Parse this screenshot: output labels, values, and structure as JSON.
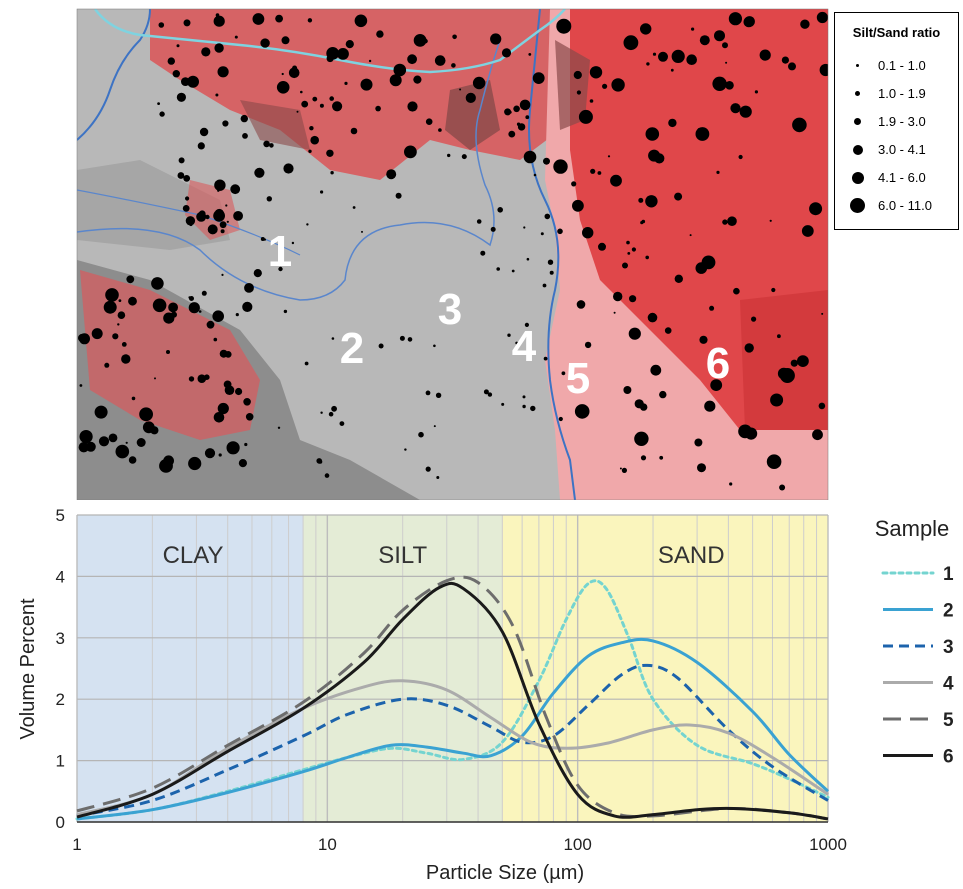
{
  "map": {
    "region_labels": [
      "1",
      "2",
      "3",
      "4",
      "5",
      "6"
    ],
    "legend": {
      "title": "Silt/Sand ratio",
      "classes": [
        "0.1 - 1.0",
        "1.0 - 1.9",
        "1.9 - 3.0",
        "3.0 - 4.1",
        "4.1 - 6.0",
        "6.0 - 11.0"
      ]
    },
    "colors": {
      "hillshade": "#b8b8b8",
      "sand_red": "#e0474a",
      "light_pink": "#f0a8aa",
      "river": "#3d73c4",
      "border": "#7fd3e0"
    }
  },
  "chart_data": {
    "type": "line",
    "xlabel": "Particle Size (µm)",
    "ylabel": "Volume Percent",
    "xscale": "log",
    "xlim": [
      1,
      1000
    ],
    "ylim": [
      0,
      5
    ],
    "xticks": [
      "1",
      "10",
      "100",
      "1000"
    ],
    "yticks": [
      "0",
      "1",
      "2",
      "3",
      "4",
      "5"
    ],
    "grid": true,
    "legend_title": "Sample",
    "legend_position": "right",
    "zones": [
      {
        "label": "CLAY",
        "from": 1,
        "to": 8,
        "color": "#d5e2f1"
      },
      {
        "label": "SILT",
        "from": 8,
        "to": 50,
        "color": "#e4ecd6"
      },
      {
        "label": "SAND",
        "from": 50,
        "to": 1000,
        "color": "#faf5bd"
      }
    ],
    "series": [
      {
        "name": "1",
        "color": "#74d4d0",
        "dash": "dotted",
        "points": [
          [
            1,
            0.05
          ],
          [
            2,
            0.2
          ],
          [
            4,
            0.5
          ],
          [
            8,
            0.85
          ],
          [
            12,
            1.05
          ],
          [
            18,
            1.2
          ],
          [
            25,
            1.12
          ],
          [
            35,
            1.02
          ],
          [
            50,
            1.3
          ],
          [
            70,
            2.3
          ],
          [
            90,
            3.3
          ],
          [
            110,
            3.88
          ],
          [
            130,
            3.8
          ],
          [
            160,
            3.0
          ],
          [
            200,
            2.0
          ],
          [
            300,
            1.25
          ],
          [
            500,
            0.95
          ],
          [
            700,
            0.7
          ],
          [
            1000,
            0.4
          ]
        ]
      },
      {
        "name": "2",
        "color": "#3aa2d2",
        "dash": "solid",
        "points": [
          [
            1,
            0.05
          ],
          [
            2,
            0.2
          ],
          [
            4,
            0.48
          ],
          [
            8,
            0.82
          ],
          [
            12,
            1.05
          ],
          [
            18,
            1.25
          ],
          [
            25,
            1.22
          ],
          [
            35,
            1.12
          ],
          [
            45,
            1.08
          ],
          [
            60,
            1.4
          ],
          [
            80,
            2.1
          ],
          [
            110,
            2.7
          ],
          [
            150,
            2.92
          ],
          [
            200,
            2.95
          ],
          [
            300,
            2.6
          ],
          [
            500,
            1.8
          ],
          [
            700,
            1.1
          ],
          [
            1000,
            0.5
          ]
        ]
      },
      {
        "name": "3",
        "color": "#1c63ac",
        "dash": "dashed",
        "points": [
          [
            1,
            0.1
          ],
          [
            2,
            0.35
          ],
          [
            4,
            0.85
          ],
          [
            8,
            1.4
          ],
          [
            12,
            1.75
          ],
          [
            20,
            2.0
          ],
          [
            30,
            1.9
          ],
          [
            45,
            1.55
          ],
          [
            60,
            1.3
          ],
          [
            80,
            1.4
          ],
          [
            110,
            1.9
          ],
          [
            150,
            2.4
          ],
          [
            190,
            2.55
          ],
          [
            250,
            2.35
          ],
          [
            400,
            1.5
          ],
          [
            600,
            0.9
          ],
          [
            1000,
            0.35
          ]
        ]
      },
      {
        "name": "4",
        "color": "#ababab",
        "dash": "solid",
        "points": [
          [
            1,
            0.12
          ],
          [
            2,
            0.45
          ],
          [
            4,
            1.2
          ],
          [
            8,
            1.85
          ],
          [
            14,
            2.2
          ],
          [
            20,
            2.3
          ],
          [
            30,
            2.15
          ],
          [
            45,
            1.7
          ],
          [
            65,
            1.3
          ],
          [
            90,
            1.2
          ],
          [
            130,
            1.28
          ],
          [
            200,
            1.5
          ],
          [
            280,
            1.58
          ],
          [
            400,
            1.45
          ],
          [
            600,
            1.05
          ],
          [
            1000,
            0.45
          ]
        ]
      },
      {
        "name": "5",
        "color": "#6d6d6d",
        "dash": "longdash",
        "points": [
          [
            1,
            0.18
          ],
          [
            2,
            0.55
          ],
          [
            4,
            1.25
          ],
          [
            8,
            1.95
          ],
          [
            14,
            2.75
          ],
          [
            20,
            3.45
          ],
          [
            30,
            3.93
          ],
          [
            40,
            3.9
          ],
          [
            55,
            3.2
          ],
          [
            75,
            1.7
          ],
          [
            100,
            0.6
          ],
          [
            140,
            0.15
          ],
          [
            200,
            0.1
          ],
          [
            400,
            0.22
          ],
          [
            700,
            0.15
          ],
          [
            1000,
            0.05
          ]
        ]
      },
      {
        "name": "6",
        "color": "#1a1a1a",
        "dash": "solid",
        "points": [
          [
            1,
            0.08
          ],
          [
            2,
            0.45
          ],
          [
            4,
            1.15
          ],
          [
            8,
            1.85
          ],
          [
            14,
            2.6
          ],
          [
            20,
            3.3
          ],
          [
            28,
            3.82
          ],
          [
            35,
            3.8
          ],
          [
            50,
            3.1
          ],
          [
            70,
            1.6
          ],
          [
            100,
            0.45
          ],
          [
            140,
            0.1
          ],
          [
            200,
            0.12
          ],
          [
            300,
            0.2
          ],
          [
            420,
            0.22
          ],
          [
            700,
            0.15
          ],
          [
            1000,
            0.05
          ]
        ]
      }
    ]
  }
}
